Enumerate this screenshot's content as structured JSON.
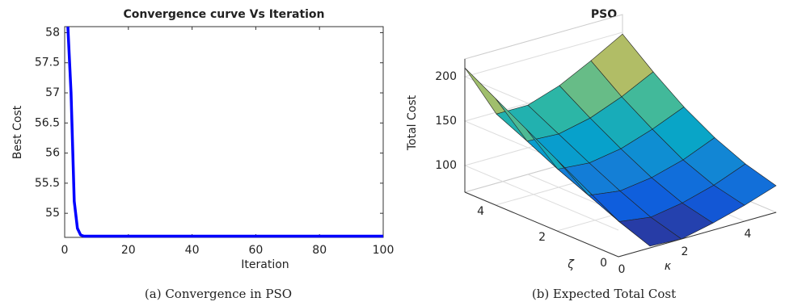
{
  "chart_data": [
    {
      "type": "line",
      "title": "Convergence curve Vs Iteration",
      "xlabel": "Iteration",
      "ylabel": "Best Cost",
      "caption": "(a) Convergence in PSO",
      "x": [
        1,
        2,
        3,
        4,
        5,
        6,
        100
      ],
      "series": [
        {
          "name": "Best Cost",
          "color": "#0000ff",
          "values": [
            58.1,
            57.0,
            55.2,
            54.75,
            54.64,
            54.62,
            54.62
          ]
        }
      ],
      "xlim": [
        0,
        100
      ],
      "xticks": [
        0,
        20,
        40,
        60,
        80,
        100
      ],
      "ylim": [
        54.6,
        58.1
      ],
      "yticks": [
        55,
        55.5,
        56,
        56.5,
        57,
        57.5,
        58
      ]
    },
    {
      "type": "surface",
      "title": "PSO",
      "xlabel": "κ",
      "ylabel": "ζ",
      "zlabel": "Total Cost",
      "caption": "(b) Expected Total Cost",
      "x": [
        0,
        1,
        2,
        3,
        4,
        5
      ],
      "y": [
        0,
        1,
        2,
        3,
        4,
        5
      ],
      "z": [
        [
          110,
          72,
          70,
          78,
          88,
          100
        ],
        [
          130,
          85,
          80,
          86,
          96,
          110
        ],
        [
          150,
          100,
          95,
          100,
          110,
          125
        ],
        [
          170,
          115,
          112,
          118,
          130,
          145
        ],
        [
          190,
          132,
          130,
          138,
          152,
          170
        ],
        [
          210,
          148,
          148,
          160,
          178,
          198
        ]
      ],
      "xlim": [
        0,
        5
      ],
      "xticks": [
        0,
        2,
        4
      ],
      "ylim": [
        0,
        5
      ],
      "yticks": [
        0,
        2,
        4
      ],
      "zlim": [
        70,
        220
      ],
      "zticks": [
        100,
        150,
        200
      ],
      "colormap": [
        "#352a87",
        "#0f5cdd",
        "#1481d6",
        "#06a4ca",
        "#2eb7a4",
        "#87bf77",
        "#d1bb59",
        "#fec832",
        "#f9fb0e"
      ]
    }
  ]
}
